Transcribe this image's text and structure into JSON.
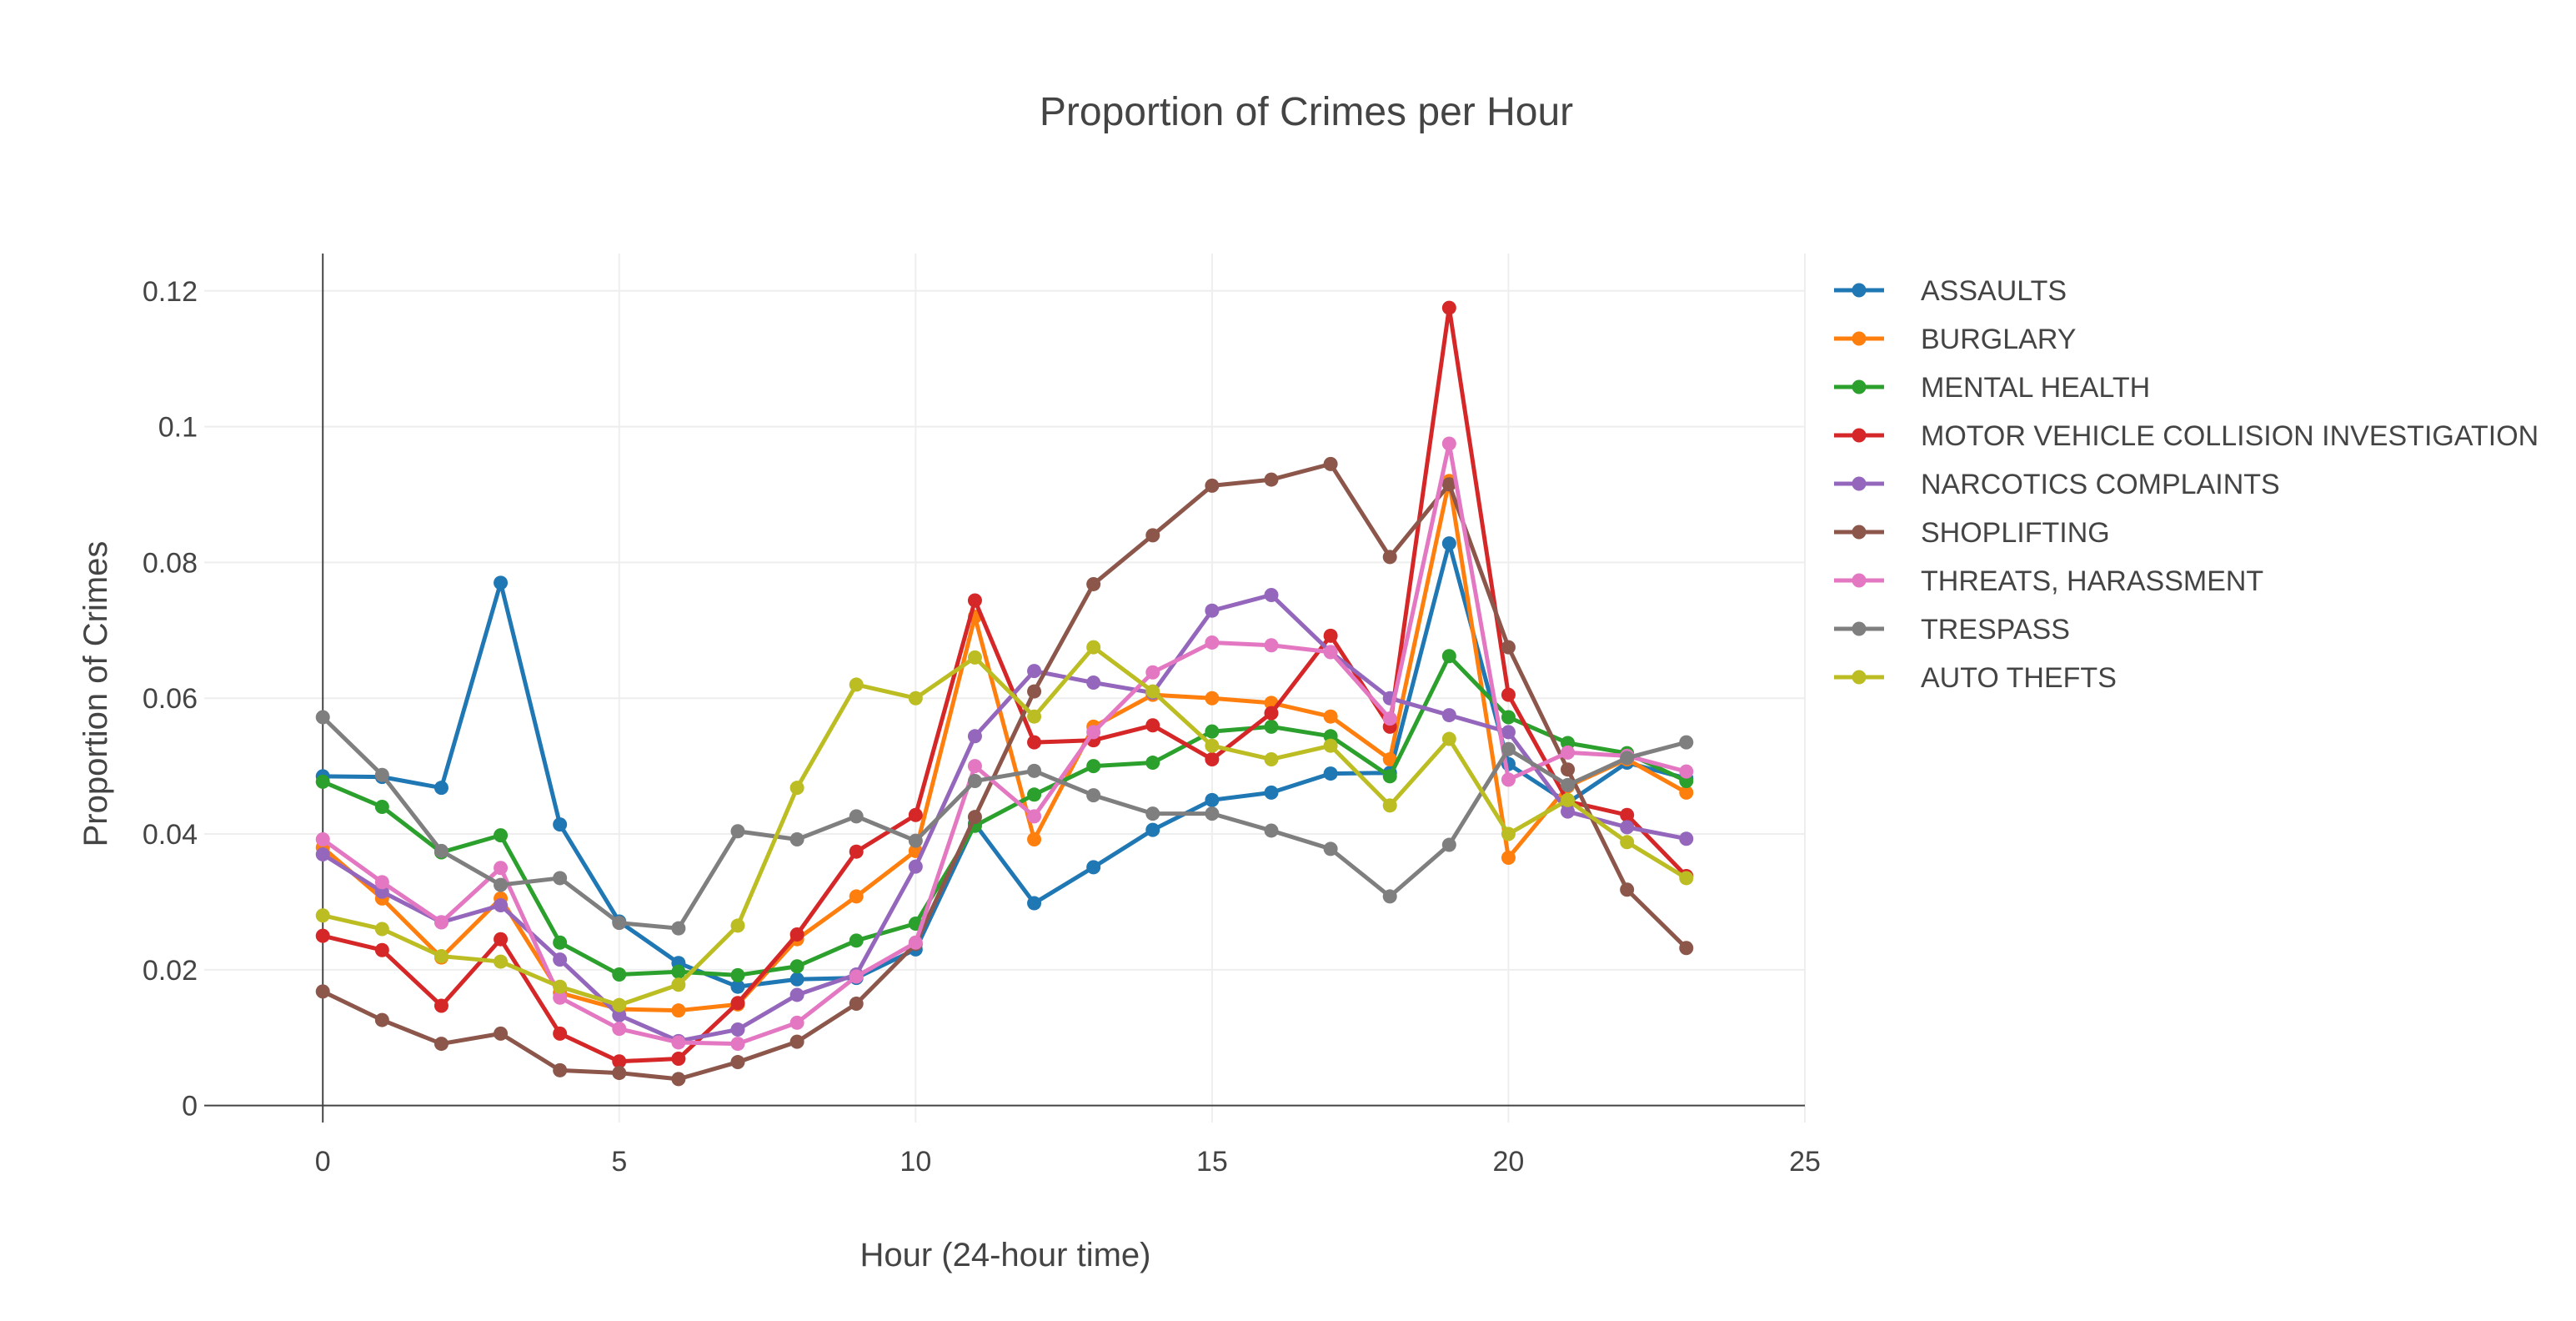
{
  "chart_data": {
    "type": "line",
    "title": "Proportion of Crimes per Hour",
    "xlabel": "Hour (24-hour time)",
    "ylabel": "Proportion of Crimes",
    "xlim": [
      -2,
      25
    ],
    "ylim": [
      -0.0025,
      0.1255
    ],
    "xticks": [
      0,
      5,
      10,
      15,
      20,
      25
    ],
    "yticks": [
      0,
      0.02,
      0.04,
      0.06,
      0.08,
      0.1,
      0.12
    ],
    "xtick_labels": [
      "0",
      "5",
      "10",
      "15",
      "20",
      "25"
    ],
    "ytick_labels": [
      "0",
      "0.02",
      "0.04",
      "0.06",
      "0.08",
      "0.1",
      "0.12"
    ],
    "grid": true,
    "legend_position": "right",
    "x": [
      0,
      1,
      2,
      3,
      4,
      5,
      6,
      7,
      8,
      9,
      10,
      11,
      12,
      13,
      14,
      15,
      16,
      17,
      18,
      19,
      20,
      21,
      22,
      23
    ],
    "series": [
      {
        "name": "ASSAULTS",
        "color": "#1f77b4",
        "values": [
          0.0485,
          0.0484,
          0.0468,
          0.077,
          0.0414,
          0.0271,
          0.021,
          0.0175,
          0.0186,
          0.0188,
          0.023,
          0.0415,
          0.0298,
          0.0351,
          0.0406,
          0.045,
          0.0461,
          0.0489,
          0.049,
          0.0828,
          0.0503,
          0.0446,
          0.0505,
          0.0482
        ]
      },
      {
        "name": "BURGLARY",
        "color": "#ff7f0e",
        "values": [
          0.038,
          0.0305,
          0.0218,
          0.0305,
          0.0166,
          0.0142,
          0.014,
          0.0149,
          0.0245,
          0.0308,
          0.0375,
          0.072,
          0.0392,
          0.0558,
          0.0605,
          0.06,
          0.0593,
          0.0573,
          0.051,
          0.092,
          0.0365,
          0.047,
          0.051,
          0.0461
        ]
      },
      {
        "name": "MENTAL HEALTH",
        "color": "#2ca02c",
        "values": [
          0.0477,
          0.044,
          0.0373,
          0.0398,
          0.024,
          0.0193,
          0.0197,
          0.0192,
          0.0205,
          0.0243,
          0.0268,
          0.0412,
          0.0458,
          0.05,
          0.0505,
          0.0551,
          0.0558,
          0.0544,
          0.0485,
          0.0662,
          0.0572,
          0.0534,
          0.0519,
          0.0478
        ]
      },
      {
        "name": "MOTOR VEHICLE COLLISION INVESTIGATION",
        "color": "#d62728",
        "values": [
          0.025,
          0.0229,
          0.0147,
          0.0245,
          0.0106,
          0.0065,
          0.0069,
          0.0151,
          0.0252,
          0.0374,
          0.0428,
          0.0744,
          0.0535,
          0.0538,
          0.056,
          0.051,
          0.0578,
          0.0692,
          0.0558,
          0.1175,
          0.0605,
          0.0448,
          0.0428,
          0.0338
        ]
      },
      {
        "name": "NARCOTICS COMPLAINTS",
        "color": "#9467bd",
        "values": [
          0.037,
          0.0315,
          0.027,
          0.0295,
          0.0215,
          0.0133,
          0.0095,
          0.0112,
          0.0163,
          0.0193,
          0.0352,
          0.0544,
          0.064,
          0.0623,
          0.0608,
          0.0729,
          0.0752,
          0.0668,
          0.06,
          0.0575,
          0.055,
          0.0433,
          0.041,
          0.0393
        ]
      },
      {
        "name": "SHOPLIFTING",
        "color": "#8c564b",
        "values": [
          0.0168,
          0.0126,
          0.0091,
          0.0106,
          0.0052,
          0.0048,
          0.0039,
          0.0064,
          0.0094,
          0.015,
          0.0238,
          0.0425,
          0.061,
          0.0768,
          0.084,
          0.0913,
          0.0922,
          0.0945,
          0.0808,
          0.0915,
          0.0675,
          0.0495,
          0.0318,
          0.0232
        ]
      },
      {
        "name": "THREATS, HARASSMENT",
        "color": "#e377c2",
        "values": [
          0.0392,
          0.0329,
          0.027,
          0.035,
          0.0159,
          0.0113,
          0.0093,
          0.0091,
          0.0122,
          0.019,
          0.024,
          0.05,
          0.0426,
          0.055,
          0.0638,
          0.0682,
          0.0678,
          0.0668,
          0.057,
          0.0975,
          0.048,
          0.052,
          0.0515,
          0.0492
        ]
      },
      {
        "name": "TRESPASS",
        "color": "#7f7f7f",
        "values": [
          0.0572,
          0.0487,
          0.0375,
          0.0325,
          0.0335,
          0.0269,
          0.0261,
          0.0404,
          0.0392,
          0.0426,
          0.039,
          0.0478,
          0.0493,
          0.0457,
          0.043,
          0.043,
          0.0405,
          0.0378,
          0.0308,
          0.0384,
          0.0525,
          0.0472,
          0.0512,
          0.0535
        ]
      },
      {
        "name": "AUTO THEFTS",
        "color": "#bcbd22",
        "values": [
          0.028,
          0.026,
          0.022,
          0.0212,
          0.0175,
          0.0148,
          0.0178,
          0.0265,
          0.0468,
          0.062,
          0.06,
          0.066,
          0.0573,
          0.0675,
          0.061,
          0.053,
          0.051,
          0.053,
          0.0442,
          0.054,
          0.04,
          0.045,
          0.0388,
          0.0335
        ]
      }
    ]
  }
}
